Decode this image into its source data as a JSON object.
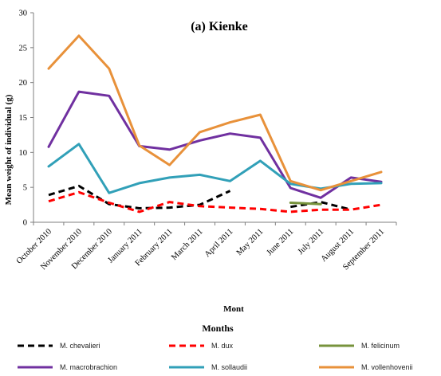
{
  "chart_data": {
    "type": "line",
    "title": "(a) Kienke",
    "ylabel": "Mean weight of individual (g)",
    "xlabel": "Mont",
    "xlabel2": "Months",
    "ylim": [
      0,
      30
    ],
    "yticks": [
      0,
      5,
      10,
      15,
      20,
      25,
      30
    ],
    "grid": false,
    "legend_position": "bottom",
    "categories": [
      "October 2010",
      "November 2010",
      "December 2010",
      "January 2011",
      "February 2011",
      "March 2011",
      "April 2011",
      "May 2011",
      "June 2011",
      "July 2011",
      "August 2011",
      "September 2011"
    ],
    "series": [
      {
        "name": "M. chevalieri",
        "color": "#000000",
        "dash": true,
        "values": [
          3.9,
          5.2,
          2.6,
          2.0,
          2.1,
          2.5,
          4.5,
          null,
          2.2,
          2.9,
          1.8,
          null
        ]
      },
      {
        "name": "M. dux",
        "color": "#ff0000",
        "dash": true,
        "values": [
          3.0,
          4.3,
          2.8,
          1.5,
          2.9,
          2.3,
          2.1,
          1.9,
          1.5,
          1.8,
          1.8,
          2.5
        ]
      },
      {
        "name": "M. felicinum",
        "color": "#77933c",
        "dash": false,
        "values": [
          null,
          null,
          null,
          null,
          null,
          null,
          null,
          null,
          2.8,
          2.6,
          null,
          null
        ]
      },
      {
        "name": "M. macrobrachion",
        "color": "#7030a0",
        "dash": false,
        "values": [
          10.8,
          18.7,
          18.1,
          10.9,
          10.4,
          11.7,
          12.7,
          12.1,
          4.9,
          3.5,
          6.4,
          5.8
        ]
      },
      {
        "name": "M. sollaudii",
        "color": "#31a0b8",
        "dash": false,
        "values": [
          8.0,
          11.2,
          4.2,
          5.6,
          6.4,
          6.8,
          5.9,
          8.8,
          5.5,
          4.8,
          5.5,
          5.6
        ]
      },
      {
        "name": "M. vollenhovenii",
        "color": "#e8913a",
        "dash": false,
        "values": [
          22.0,
          26.7,
          22.0,
          11.0,
          8.2,
          12.9,
          14.3,
          15.4,
          5.9,
          4.6,
          5.9,
          7.2
        ]
      }
    ]
  }
}
